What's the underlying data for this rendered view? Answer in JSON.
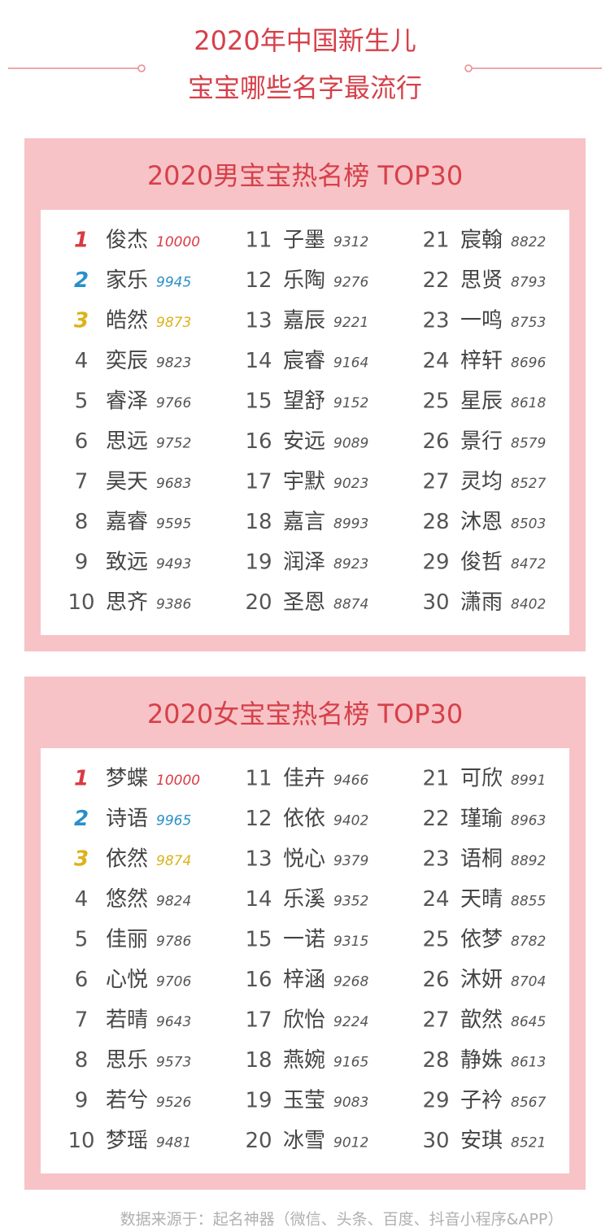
{
  "header": {
    "title_lines": [
      "2020年中国新生儿",
      "宝宝哪些名字最流行"
    ]
  },
  "sections": [
    {
      "title": "2020男宝宝热名榜  TOP30",
      "entries": [
        {
          "rank": 1,
          "name": "俊杰",
          "score": 10000
        },
        {
          "rank": 2,
          "name": "家乐",
          "score": 9945
        },
        {
          "rank": 3,
          "name": "皓然",
          "score": 9873
        },
        {
          "rank": 4,
          "name": "奕辰",
          "score": 9823
        },
        {
          "rank": 5,
          "name": "睿泽",
          "score": 9766
        },
        {
          "rank": 6,
          "name": "思远",
          "score": 9752
        },
        {
          "rank": 7,
          "name": "昊天",
          "score": 9683
        },
        {
          "rank": 8,
          "name": "嘉睿",
          "score": 9595
        },
        {
          "rank": 9,
          "name": "致远",
          "score": 9493
        },
        {
          "rank": 10,
          "name": "思齐",
          "score": 9386
        },
        {
          "rank": 11,
          "name": "子墨",
          "score": 9312
        },
        {
          "rank": 12,
          "name": "乐陶",
          "score": 9276
        },
        {
          "rank": 13,
          "name": "嘉辰",
          "score": 9221
        },
        {
          "rank": 14,
          "name": "宸睿",
          "score": 9164
        },
        {
          "rank": 15,
          "name": "望舒",
          "score": 9152
        },
        {
          "rank": 16,
          "name": "安远",
          "score": 9089
        },
        {
          "rank": 17,
          "name": "宇默",
          "score": 9023
        },
        {
          "rank": 18,
          "name": "嘉言",
          "score": 8993
        },
        {
          "rank": 19,
          "name": "润泽",
          "score": 8923
        },
        {
          "rank": 20,
          "name": "圣恩",
          "score": 8874
        },
        {
          "rank": 21,
          "name": "宸翰",
          "score": 8822
        },
        {
          "rank": 22,
          "name": "思贤",
          "score": 8793
        },
        {
          "rank": 23,
          "name": "一鸣",
          "score": 8753
        },
        {
          "rank": 24,
          "name": "梓轩",
          "score": 8696
        },
        {
          "rank": 25,
          "name": "星辰",
          "score": 8618
        },
        {
          "rank": 26,
          "name": "景行",
          "score": 8579
        },
        {
          "rank": 27,
          "name": "灵均",
          "score": 8527
        },
        {
          "rank": 28,
          "name": "沐恩",
          "score": 8503
        },
        {
          "rank": 29,
          "name": "俊哲",
          "score": 8472
        },
        {
          "rank": 30,
          "name": "潇雨",
          "score": 8402
        }
      ]
    },
    {
      "title": "2020女宝宝热名榜  TOP30",
      "entries": [
        {
          "rank": 1,
          "name": "梦蝶",
          "score": 10000
        },
        {
          "rank": 2,
          "name": "诗语",
          "score": 9965
        },
        {
          "rank": 3,
          "name": "依然",
          "score": 9874
        },
        {
          "rank": 4,
          "name": "悠然",
          "score": 9824
        },
        {
          "rank": 5,
          "name": "佳丽",
          "score": 9786
        },
        {
          "rank": 6,
          "name": "心悦",
          "score": 9706
        },
        {
          "rank": 7,
          "name": "若晴",
          "score": 9643
        },
        {
          "rank": 8,
          "name": "思乐",
          "score": 9573
        },
        {
          "rank": 9,
          "name": "若兮",
          "score": 9526
        },
        {
          "rank": 10,
          "name": "梦瑶",
          "score": 9481
        },
        {
          "rank": 11,
          "name": "佳卉",
          "score": 9466
        },
        {
          "rank": 12,
          "name": "依依",
          "score": 9402
        },
        {
          "rank": 13,
          "name": "悦心",
          "score": 9379
        },
        {
          "rank": 14,
          "name": "乐溪",
          "score": 9352
        },
        {
          "rank": 15,
          "name": "一诺",
          "score": 9315
        },
        {
          "rank": 16,
          "name": "梓涵",
          "score": 9268
        },
        {
          "rank": 17,
          "name": "欣怡",
          "score": 9224
        },
        {
          "rank": 18,
          "name": "燕婉",
          "score": 9165
        },
        {
          "rank": 19,
          "name": "玉莹",
          "score": 9083
        },
        {
          "rank": 20,
          "name": "冰雪",
          "score": 9012
        },
        {
          "rank": 21,
          "name": "可欣",
          "score": 8991
        },
        {
          "rank": 22,
          "name": "瑾瑜",
          "score": 8963
        },
        {
          "rank": 23,
          "name": "语桐",
          "score": 8892
        },
        {
          "rank": 24,
          "name": "天晴",
          "score": 8855
        },
        {
          "rank": 25,
          "name": "依梦",
          "score": 8782
        },
        {
          "rank": 26,
          "name": "沐妍",
          "score": 8704
        },
        {
          "rank": 27,
          "name": "歆然",
          "score": 8645
        },
        {
          "rank": 28,
          "name": "静姝",
          "score": 8613
        },
        {
          "rank": 29,
          "name": "子衿",
          "score": 8567
        },
        {
          "rank": 30,
          "name": "安琪",
          "score": 8521
        }
      ]
    }
  ],
  "footer": {
    "source": "数据来源于：起名神器（微信、头条、百度、抖音小程序&APP）"
  }
}
